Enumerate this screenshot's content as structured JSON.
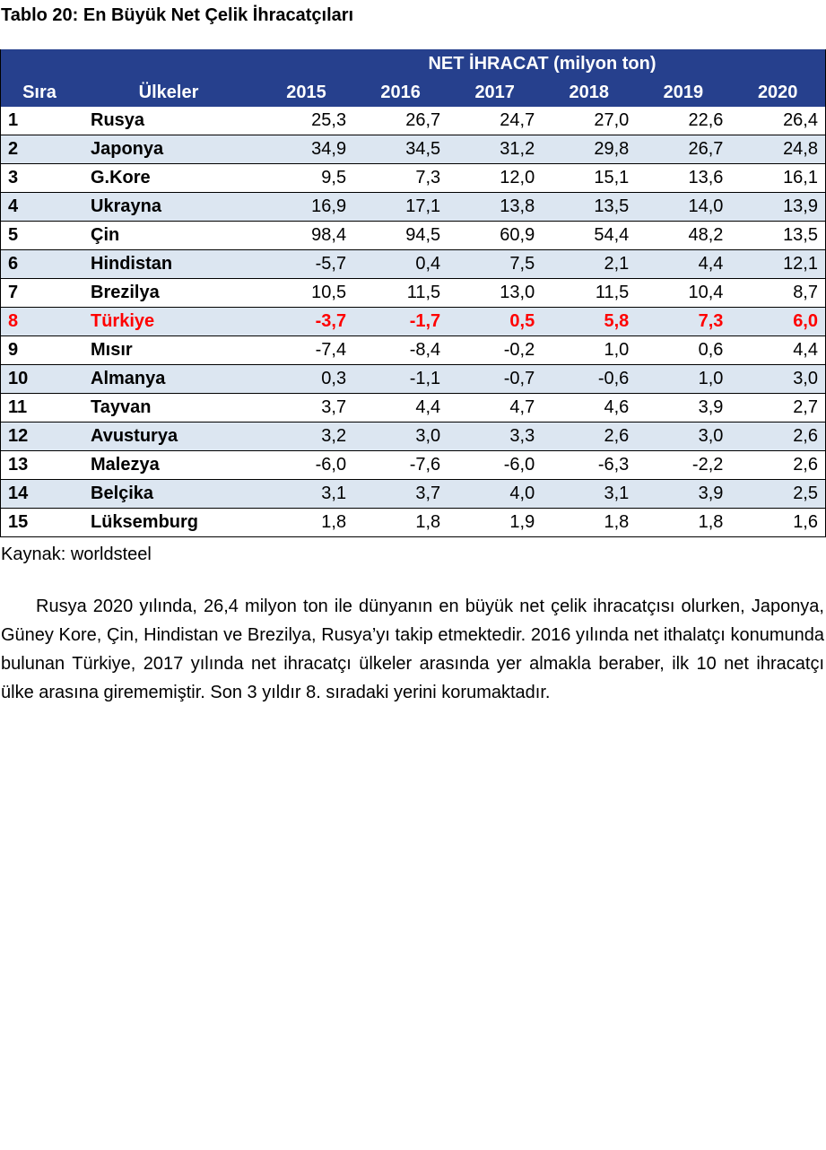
{
  "title": "Tablo 20: En Büyük Net Çelik İhracatçıları",
  "table": {
    "group_header": "NET İHRACAT (milyon ton)",
    "headers": [
      "Sıra",
      "Ülkeler",
      "2015",
      "2016",
      "2017",
      "2018",
      "2019",
      "2020"
    ],
    "highlight_color": "#FF0000",
    "header_color": "#26408D",
    "rows": [
      [
        "1",
        "Rusya",
        "25,3",
        "26,7",
        "24,7",
        "27,0",
        "22,6",
        "26,4"
      ],
      [
        "2",
        "Japonya",
        "34,9",
        "34,5",
        "31,2",
        "29,8",
        "26,7",
        "24,8"
      ],
      [
        "3",
        "G.Kore",
        "9,5",
        "7,3",
        "12,0",
        "15,1",
        "13,6",
        "16,1"
      ],
      [
        "4",
        "Ukrayna",
        "16,9",
        "17,1",
        "13,8",
        "13,5",
        "14,0",
        "13,9"
      ],
      [
        "5",
        "Çin",
        "98,4",
        "94,5",
        "60,9",
        "54,4",
        "48,2",
        "13,5"
      ],
      [
        "6",
        "Hindistan",
        "-5,7",
        "0,4",
        "7,5",
        "2,1",
        "4,4",
        "12,1"
      ],
      [
        "7",
        "Brezilya",
        "10,5",
        "11,5",
        "13,0",
        "11,5",
        "10,4",
        "8,7"
      ],
      [
        "8",
        "Türkiye",
        "-3,7",
        "-1,7",
        "0,5",
        "5,8",
        "7,3",
        "6,0"
      ],
      [
        "9",
        "Mısır",
        "-7,4",
        "-8,4",
        "-0,2",
        "1,0",
        "0,6",
        "4,4"
      ],
      [
        "10",
        "Almanya",
        "0,3",
        "-1,1",
        "-0,7",
        "-0,6",
        "1,0",
        "3,0"
      ],
      [
        "11",
        "Tayvan",
        "3,7",
        "4,4",
        "4,7",
        "4,6",
        "3,9",
        "2,7"
      ],
      [
        "12",
        "Avusturya",
        "3,2",
        "3,0",
        "3,3",
        "2,6",
        "3,0",
        "2,6"
      ],
      [
        "13",
        "Malezya",
        "-6,0",
        "-7,6",
        "-6,0",
        "-6,3",
        "-2,2",
        "2,6"
      ],
      [
        "14",
        "Belçika",
        "3,1",
        "3,7",
        "4,0",
        "3,1",
        "3,9",
        "2,5"
      ],
      [
        "15",
        "Lüksemburg",
        "1,8",
        "1,8",
        "1,9",
        "1,8",
        "1,8",
        "1,6"
      ]
    ]
  },
  "source": "Kaynak: worldsteel",
  "paragraph": "Rusya 2020 yılında, 26,4 milyon ton ile dünyanın en büyük net çelik ihracatçısı olurken, Japonya, Güney Kore, Çin, Hindistan ve Brezilya, Rusya’yı takip etmektedir. 2016 yılında net ithalatçı konumunda bulunan Türkiye, 2017 yılında net ihracatçı ülkeler arasında yer almakla beraber, ilk 10 net ihracatçı ülke arasına girememiştir. Son 3 yıldır 8. sıradaki yerini korumaktadır."
}
